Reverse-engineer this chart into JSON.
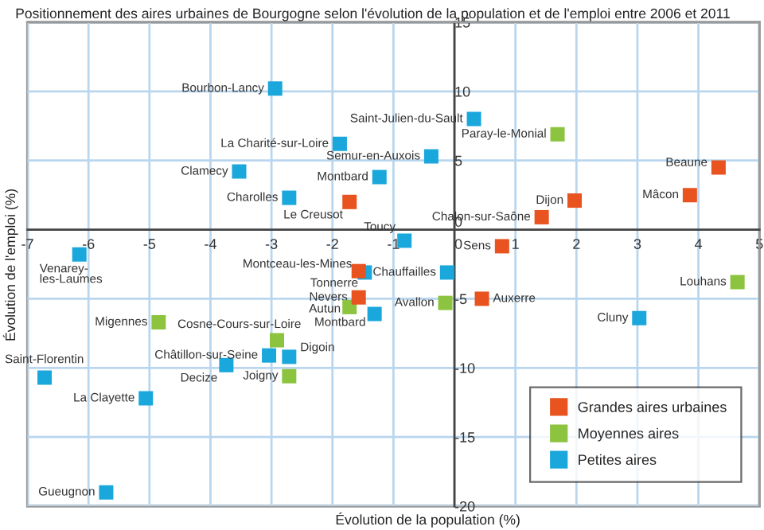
{
  "chart_data": {
    "type": "scatter",
    "title": "Positionnement des aires urbaines de Bourgogne selon l'évolution de la population et de l'emploi entre 2006 et 2011",
    "xlabel": "Évolution de la population (%)",
    "ylabel": "Évolution de l'emploi (%)",
    "xlim": [
      -7,
      5
    ],
    "xticks": [
      -7,
      -6,
      -5,
      -4,
      -3,
      -2,
      -1,
      0,
      1,
      2,
      3,
      4,
      5
    ],
    "ylim": [
      -20,
      15
    ],
    "yticks": [
      -20,
      -15,
      -10,
      -5,
      0,
      5,
      10,
      15
    ],
    "grid": true,
    "legend": "bottom right",
    "marker": "square",
    "series": [
      {
        "name": "Grandes aires urbaines",
        "color": "#e8531f",
        "x": [
          -1.72,
          4.33,
          3.86,
          1.97,
          1.43,
          0.78,
          -1.57,
          -1.57,
          0.45
        ],
        "values": [
          2.0,
          4.5,
          2.5,
          2.1,
          0.9,
          -1.2,
          -3.0,
          -4.9,
          -5.0
        ]
      },
      {
        "name": "Moyennes aires",
        "color": "#8cc43f",
        "x": [
          1.69,
          -1.72,
          -0.15,
          4.64,
          -4.85,
          -2.91,
          -2.71
        ],
        "values": [
          6.9,
          -5.6,
          -5.3,
          -3.8,
          -6.7,
          -8.0,
          -10.6
        ]
      },
      {
        "name": "Petites aires",
        "color": "#1aa7dc",
        "x": [
          -2.94,
          -1.88,
          -3.53,
          -2.71,
          -1.23,
          -0.38,
          0.32,
          -0.82,
          -6.15,
          -1.47,
          -1.31,
          -0.12,
          3.03,
          -3.04,
          -2.71,
          -3.74,
          -6.72,
          -5.06,
          -5.71
        ],
        "values": [
          10.2,
          6.2,
          4.2,
          2.3,
          3.8,
          5.3,
          8.0,
          -0.8,
          -1.8,
          -3.1,
          -6.1,
          -3.1,
          -6.4,
          -9.1,
          -9.2,
          -9.8,
          -10.7,
          -12.2,
          -19.0
        ]
      }
    ],
    "annotations": [
      {
        "text": "Le Creusot",
        "x": -1.72,
        "y": 2.0
      },
      {
        "text": "Beaune",
        "x": 4.33,
        "y": 4.5
      },
      {
        "text": "Mâcon",
        "x": 3.86,
        "y": 2.5
      },
      {
        "text": "Dijon",
        "x": 1.97,
        "y": 2.1
      },
      {
        "text": "Chalon-sur-Saône",
        "x": 1.43,
        "y": 0.9
      },
      {
        "text": "Sens",
        "x": 0.78,
        "y": -1.2
      },
      {
        "text": "Montceau-les-Mines",
        "x": -1.57,
        "y": -3.0
      },
      {
        "text": "Nevers",
        "x": -1.57,
        "y": -4.9
      },
      {
        "text": "Auxerre",
        "x": 0.45,
        "y": -5.0
      },
      {
        "text": "Paray-le-Monial",
        "x": 1.69,
        "y": 6.9
      },
      {
        "text": "Autun",
        "x": -1.72,
        "y": -5.6
      },
      {
        "text": "Avallon",
        "x": -0.15,
        "y": -5.3
      },
      {
        "text": "Louhans",
        "x": 4.64,
        "y": -3.8
      },
      {
        "text": "Migennes",
        "x": -4.85,
        "y": -6.7
      },
      {
        "text": "Cosne-Cours-sur-Loire",
        "x": -2.91,
        "y": -8.0
      },
      {
        "text": "Joigny",
        "x": -2.71,
        "y": -10.6
      },
      {
        "text": "Bourbon-Lancy",
        "x": -2.94,
        "y": 10.2
      },
      {
        "text": "La Charité-sur-Loire",
        "x": -1.88,
        "y": 6.2
      },
      {
        "text": "Clamecy",
        "x": -3.53,
        "y": 4.2
      },
      {
        "text": "Charolles",
        "x": -2.71,
        "y": 2.3
      },
      {
        "text": "Montbard",
        "x": -1.23,
        "y": 3.8
      },
      {
        "text": "Semur-en-Auxois",
        "x": -0.38,
        "y": 5.3
      },
      {
        "text": "Saint-Julien-du-Sault",
        "x": 0.32,
        "y": 8.0
      },
      {
        "text": "Toucy",
        "x": -0.82,
        "y": -0.8
      },
      {
        "text": "Venarey-\nles-Laumes",
        "x": -6.15,
        "y": -1.8
      },
      {
        "text": "Tonnerre",
        "x": -1.47,
        "y": -3.1
      },
      {
        "text": "Montbard",
        "x": -1.31,
        "y": -6.1
      },
      {
        "text": "Chauffailles",
        "x": -0.12,
        "y": -3.1
      },
      {
        "text": "Cluny",
        "x": 3.03,
        "y": -6.4
      },
      {
        "text": "Châtillon-sur-Seine",
        "x": -3.04,
        "y": -9.1
      },
      {
        "text": "Digoin",
        "x": -2.71,
        "y": -9.2
      },
      {
        "text": "Decize",
        "x": -3.74,
        "y": -9.8
      },
      {
        "text": "Saint-Florentin",
        "x": -6.72,
        "y": -10.7
      },
      {
        "text": "La Clayette",
        "x": -5.06,
        "y": -12.2
      },
      {
        "text": "Gueugnon",
        "x": -5.71,
        "y": -19.0
      }
    ]
  }
}
